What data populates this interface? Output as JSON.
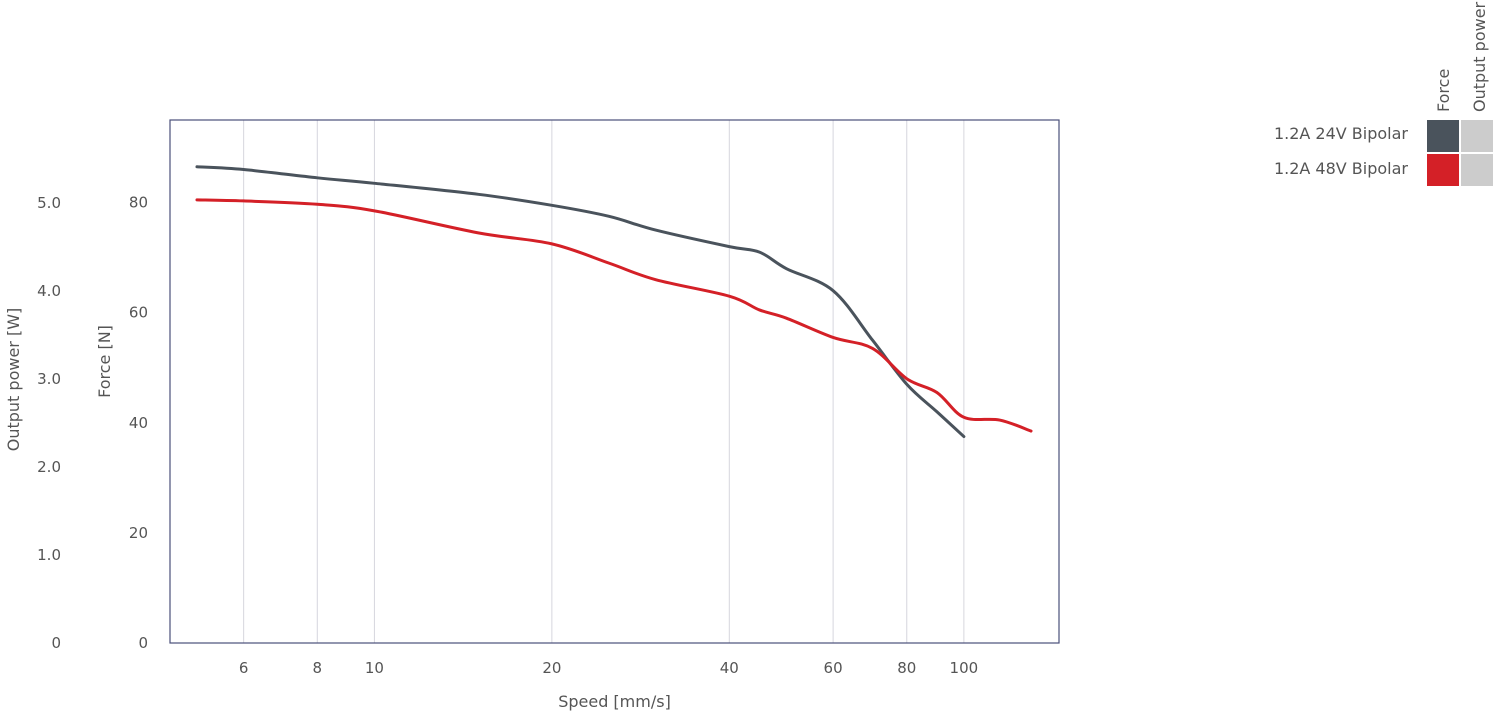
{
  "chart_data": {
    "type": "line",
    "xlabel": "Speed [mm/s]",
    "ylabel": "Force [N]",
    "y2label": "Output power [W]",
    "xscale": "log",
    "xlim": [
      4.5,
      145
    ],
    "ylim": [
      0,
      95
    ],
    "y2lim": [
      0,
      5.94
    ],
    "x_ticks": [
      6,
      8,
      10,
      20,
      40,
      60,
      80,
      100
    ],
    "x_tick_labels": [
      "6",
      "8",
      "10",
      "20",
      "40",
      "60",
      "80",
      "100"
    ],
    "y_ticks": [
      0,
      20,
      40,
      60,
      80
    ],
    "y_tick_labels": [
      "0",
      "20",
      "40",
      "60",
      "80"
    ],
    "y2_ticks": [
      0,
      1,
      2,
      3,
      4,
      5
    ],
    "y2_tick_labels": [
      "0",
      "1.0",
      "2.0",
      "3.0",
      "4.0",
      "5.0"
    ],
    "grid": "vertical",
    "legend_placement": "top-right",
    "legend_columns": [
      "Force",
      "Output power"
    ],
    "series": [
      {
        "name": "1.2A 24V Bipolar",
        "color": "#4a535c",
        "x": [
          5,
          6,
          8,
          10,
          15,
          20,
          25,
          30,
          40,
          45,
          50,
          60,
          70,
          80,
          90,
          100
        ],
        "y": [
          86.5,
          86,
          84.5,
          83.5,
          81.5,
          79.5,
          77.5,
          75,
          72,
          71,
          68,
          64,
          55,
          47,
          42,
          37.5
        ]
      },
      {
        "name": "1.2A 48V Bipolar",
        "color": "#d42027",
        "x": [
          5,
          6,
          8,
          10,
          15,
          20,
          25,
          30,
          40,
          45,
          50,
          60,
          70,
          80,
          90,
          100,
          115,
          130
        ],
        "y": [
          80.5,
          80.3,
          79.7,
          78.5,
          74.5,
          72.5,
          69,
          66,
          63,
          60.5,
          59,
          55.5,
          53.5,
          48,
          45.5,
          41,
          40.5,
          38.5
        ]
      }
    ],
    "output_power_color": "#cccccc"
  }
}
